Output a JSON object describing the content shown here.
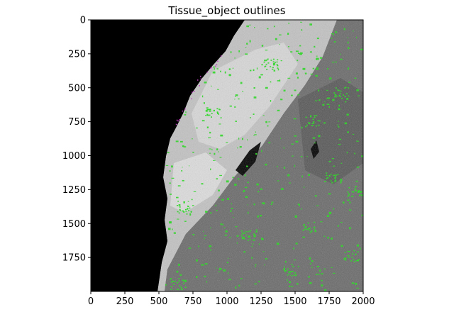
{
  "figure": {
    "title": "Tissue_object outlines"
  },
  "chart_data": {
    "type": "image",
    "title": "Tissue_object outlines",
    "xlabel": "",
    "ylabel": "",
    "xlim": [
      0,
      2000
    ],
    "ylim": [
      2000,
      0
    ],
    "xticks": [
      0,
      250,
      500,
      750,
      1000,
      1250,
      1500,
      1750,
      2000
    ],
    "yticks": [
      0,
      250,
      500,
      750,
      1000,
      1250,
      1500,
      1750
    ],
    "xtick_labels": [
      "0",
      "250",
      "500",
      "750",
      "1000",
      "1250",
      "1500",
      "1750",
      "2000"
    ],
    "ytick_labels": [
      "0",
      "250",
      "500",
      "750",
      "1000",
      "1250",
      "1500",
      "1750"
    ],
    "grid": false,
    "colors": {
      "background": "#000000",
      "tissue_light": "#cfcfcf",
      "tissue_dark": "#5a5a5a",
      "outline_green": "#35d62f",
      "outline_magenta": "#c040c0"
    }
  }
}
